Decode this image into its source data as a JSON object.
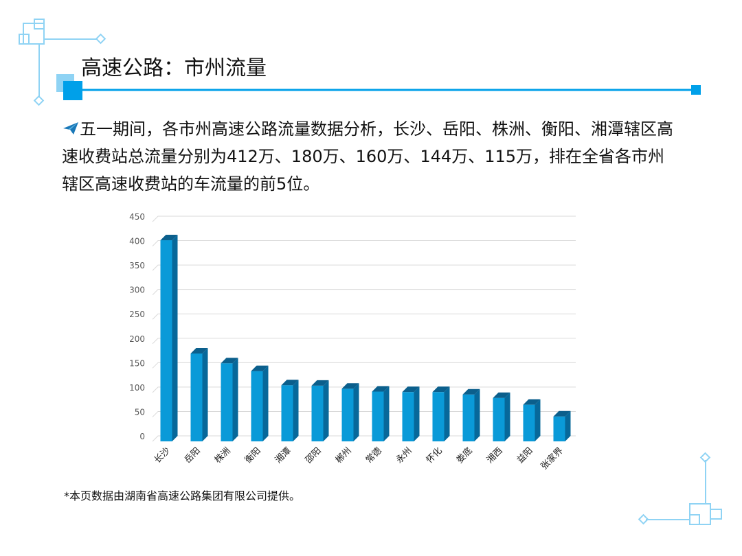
{
  "header": {
    "title": "高速公路：市州流量"
  },
  "body": {
    "paragraph": "五一期间，各市州高速公路流量数据分析，长沙、岳阳、株洲、衡阳、湘潭辖区高速收费站总流量分别为412万、180万、160万、144万、115万，排在全省各市州辖区高速收费站的车流量的前5位。",
    "bullet_icon": "paper-plane-icon"
  },
  "footnote": "*本页数据由湖南省高速公路集团有限公司提供。",
  "colors": {
    "accent": "#00a0e9",
    "bar_front": "#0a9ad8",
    "bar_side": "#07689a",
    "bar_top": "#0b5f8c",
    "grid": "#d9d9d9",
    "deco": "#8fd3f4"
  },
  "chart_data": {
    "type": "bar",
    "categories": [
      "长沙",
      "岳阳",
      "株洲",
      "衡阳",
      "湘潭",
      "邵阳",
      "郴州",
      "常德",
      "永州",
      "怀化",
      "娄底",
      "湘西",
      "益阳",
      "张家界"
    ],
    "values": [
      412,
      180,
      160,
      144,
      115,
      114,
      108,
      102,
      101,
      101,
      96,
      89,
      75,
      51
    ],
    "title": "",
    "xlabel": "",
    "ylabel": "",
    "ylim": [
      0,
      450
    ],
    "yticks": [
      0,
      50,
      100,
      150,
      200,
      250,
      300,
      350,
      400,
      450
    ],
    "grid": true,
    "legend": "none"
  }
}
